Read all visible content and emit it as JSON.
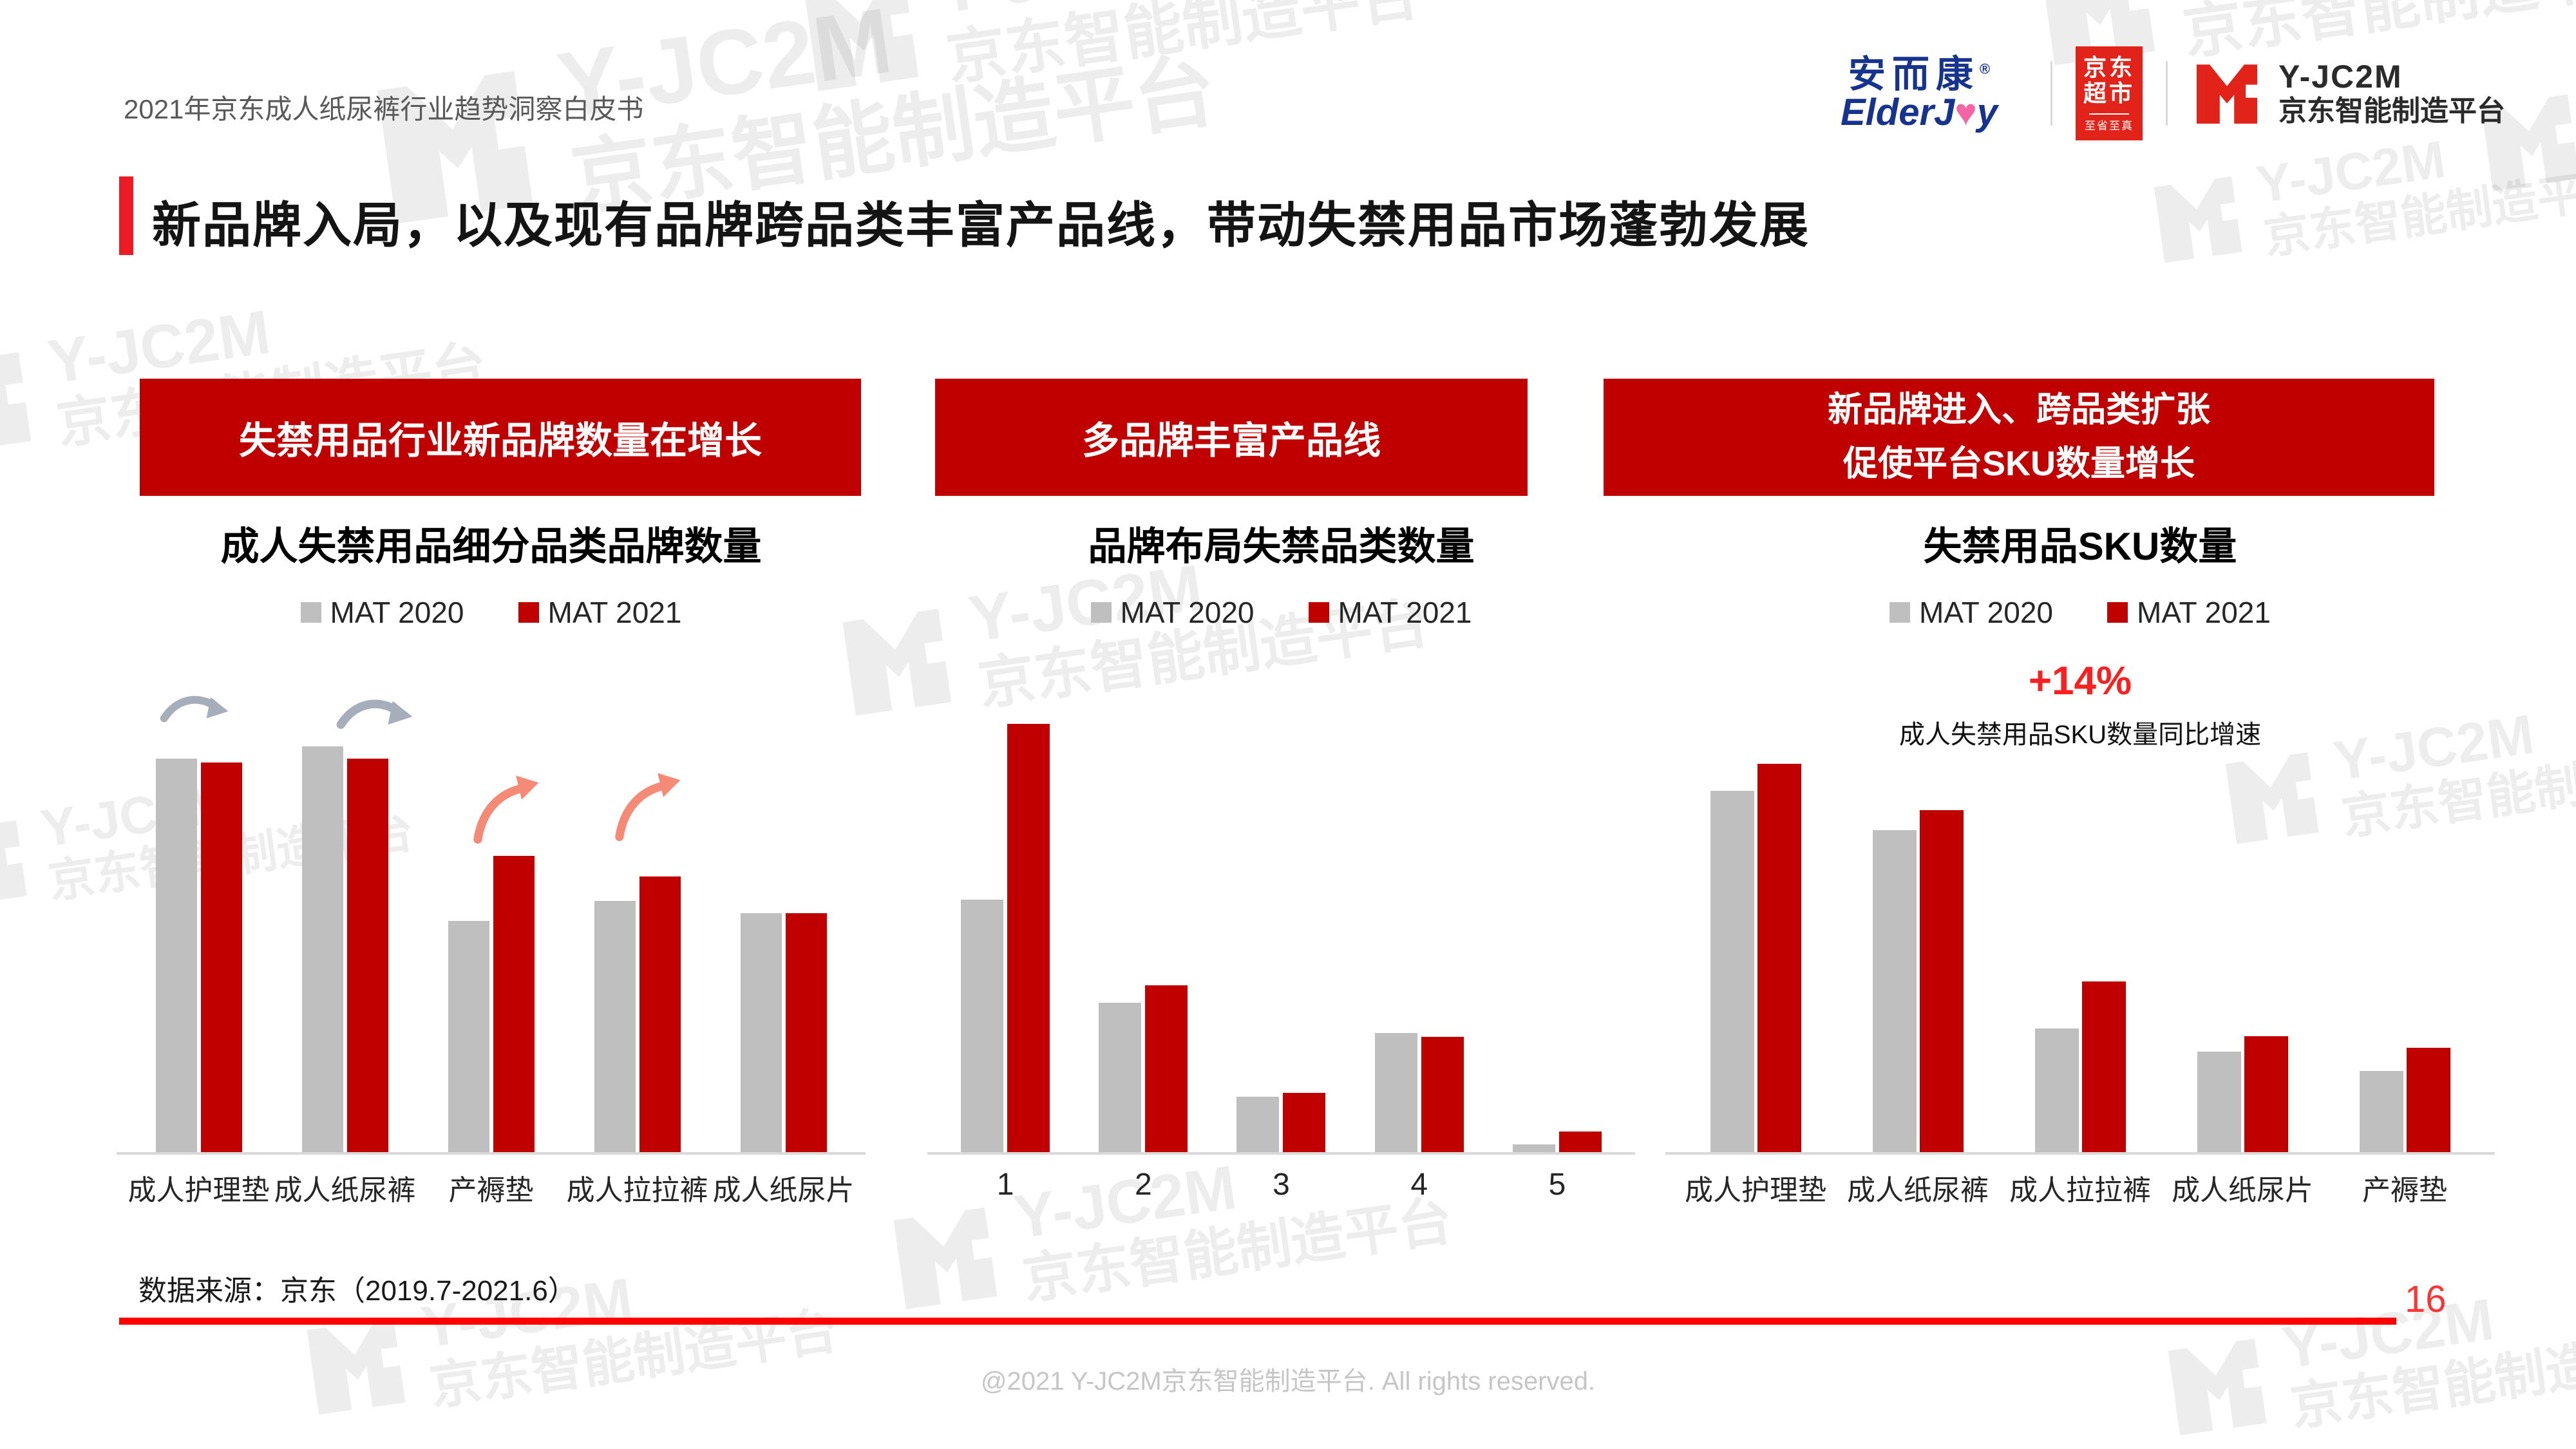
{
  "page": {
    "header_label": "2021年京东成人纸尿裤行业趋势洞察白皮书",
    "title": "新品牌入局，以及现有品牌跨品类丰富产品线，带动失禁用品市场蓬勃发展",
    "page_number": "16",
    "source_note": "数据来源：京东（2019.7-2021.6）",
    "copyright": "@2021 Y-JC2M京东智能制造平台. All rights reserved."
  },
  "logos": {
    "elderjoy": {
      "cn": "安而康",
      "reg": "®",
      "en_pre": "ElderJ",
      "en_heart": "♥",
      "en_post": "y"
    },
    "jd_supermarket": {
      "line1": "京东",
      "line2": "超市",
      "tagline": "至省至真"
    },
    "yjc2m": {
      "name": "Y-JC2M",
      "subtitle": "京东智能制造平台"
    }
  },
  "watermark": {
    "brand": "Y-JC2M",
    "subtitle": "京东智能制造平台"
  },
  "columns": [
    {
      "banner_lines": [
        "失禁用品行业新品牌数量在增长"
      ],
      "chart_title": "成人失禁用品细分品类品牌数量"
    },
    {
      "banner_lines": [
        "多品牌丰富产品线"
      ],
      "chart_title": "品牌布局失禁品类数量"
    },
    {
      "banner_lines": [
        "新品牌进入、跨品类扩张",
        "促使平台SKU数量增长"
      ],
      "chart_title": "失禁用品SKU数量",
      "annotation_value": "+14%",
      "annotation_label": "成人失禁用品SKU数量同比增速"
    }
  ],
  "legend": [
    "MAT 2020",
    "MAT 2021"
  ],
  "colors": {
    "banner_red": "#C00000",
    "bar_red": "#C00000",
    "bar_gray": "#BFBFBF",
    "accent_red": "#ED1C24",
    "line_red": "#FF0000",
    "annotation_red": "#FA2020",
    "arrow_gray": "#A6AEBB",
    "arrow_salmon": "#F58B77",
    "jd_red": "#E2231A",
    "elderjoy_blue": "#16338E",
    "heart_pink": "#F365A5"
  },
  "chart_data": [
    {
      "type": "bar",
      "title": "成人失禁用品细分品类品牌数量",
      "categories": [
        "成人护理垫",
        "成人纸尿裤",
        "产褥垫",
        "成人拉拉裤",
        "成人纸尿片"
      ],
      "series": [
        {
          "name": "MAT 2020",
          "values": [
            97,
            100,
            57,
            62,
            59
          ]
        },
        {
          "name": "MAT 2021",
          "values": [
            96,
            97,
            73,
            68,
            59
          ]
        }
      ],
      "value_scale": "relative index 0-100 (no numeric axis shown)",
      "legend_position": "top",
      "grid": false,
      "y_axis_visible": false,
      "trend_arrows": [
        {
          "category": "成人护理垫",
          "direction": "down"
        },
        {
          "category": "成人纸尿裤",
          "direction": "down"
        },
        {
          "category": "产褥垫",
          "direction": "up"
        },
        {
          "category": "成人拉拉裤",
          "direction": "up"
        }
      ]
    },
    {
      "type": "bar",
      "title": "品牌布局失禁品类数量",
      "categories": [
        "1",
        "2",
        "3",
        "4",
        "5"
      ],
      "series": [
        {
          "name": "MAT 2020",
          "values": [
            59,
            35,
            13,
            28,
            2
          ]
        },
        {
          "name": "MAT 2021",
          "values": [
            100,
            39,
            14,
            27,
            5
          ]
        }
      ],
      "value_scale": "relative index 0-100 (no numeric axis shown)",
      "legend_position": "top",
      "grid": false,
      "y_axis_visible": false
    },
    {
      "type": "bar",
      "title": "失禁用品SKU数量",
      "categories": [
        "成人护理垫",
        "成人纸尿裤",
        "成人拉拉裤",
        "成人纸尿片",
        "产褥垫"
      ],
      "series": [
        {
          "name": "MAT 2020",
          "values": [
            93,
            83,
            32,
            26,
            21
          ]
        },
        {
          "name": "MAT 2021",
          "values": [
            100,
            88,
            44,
            30,
            27
          ]
        }
      ],
      "value_scale": "relative index 0-100 (no numeric axis shown)",
      "legend_position": "top",
      "grid": false,
      "y_axis_visible": false,
      "annotation": {
        "value": "+14%",
        "label": "成人失禁用品SKU数量同比增速"
      }
    }
  ]
}
